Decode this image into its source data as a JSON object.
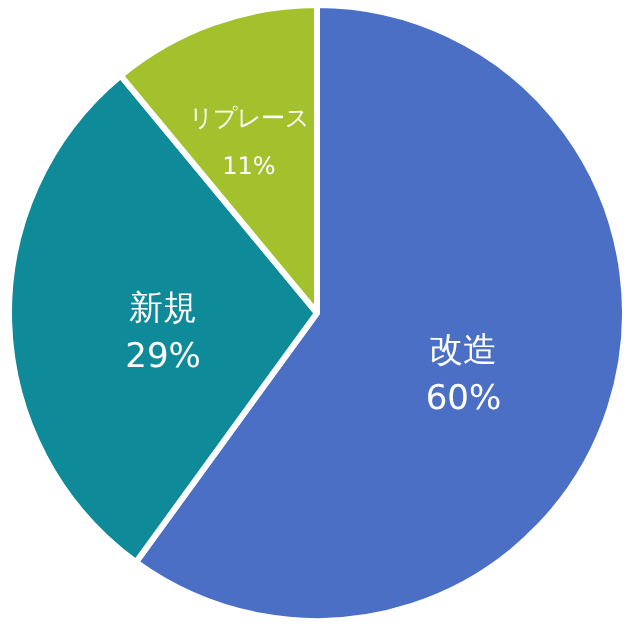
{
  "chart_data": {
    "type": "pie",
    "categories": [
      "改造",
      "新規",
      "リプレース"
    ],
    "values": [
      60,
      29,
      11
    ],
    "colors": [
      "#4a6fc4",
      "#0e8a99",
      "#a3c12d"
    ],
    "value_labels": [
      "60%",
      "29%",
      "11%"
    ],
    "legend": false
  }
}
